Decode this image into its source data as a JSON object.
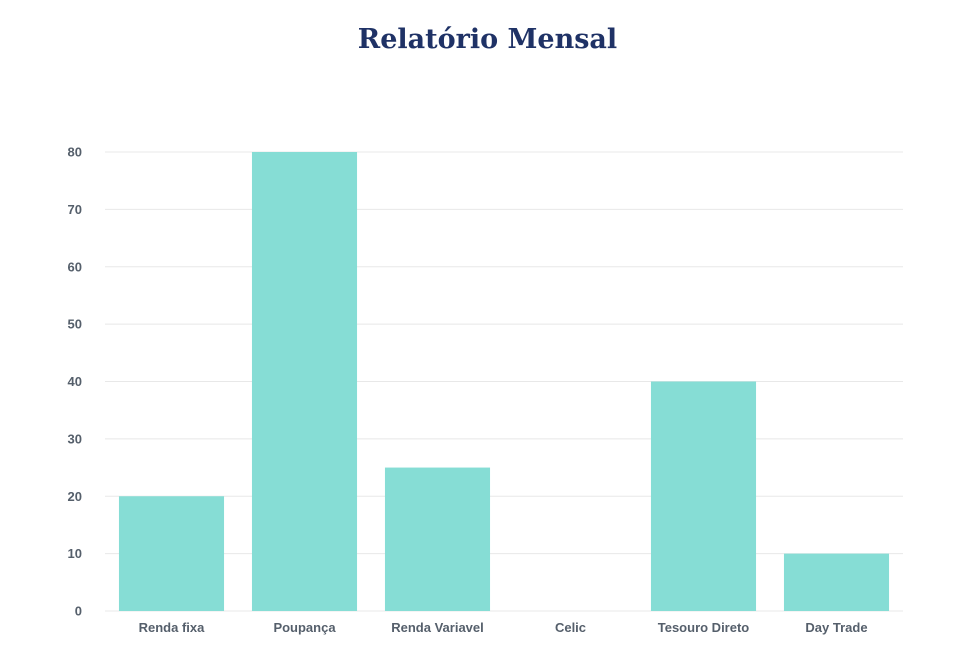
{
  "title": "Relatório Mensal",
  "colors": {
    "bar": "#86ddd5",
    "title": "#1f3266",
    "grid": "#e8e8e8",
    "tick": "#555f6b"
  },
  "chart_data": {
    "type": "bar",
    "title": "Relatório Mensal",
    "xlabel": "",
    "ylabel": "",
    "categories": [
      "Renda fixa",
      "Poupança",
      "Renda Variavel",
      "Celic",
      "Tesouro Direto",
      "Day Trade"
    ],
    "values": [
      20,
      80,
      25,
      0,
      40,
      10
    ],
    "ylim": [
      0,
      80
    ],
    "yticks": [
      0,
      10,
      20,
      30,
      40,
      50,
      60,
      70,
      80
    ],
    "grid": true,
    "legend": "none"
  }
}
